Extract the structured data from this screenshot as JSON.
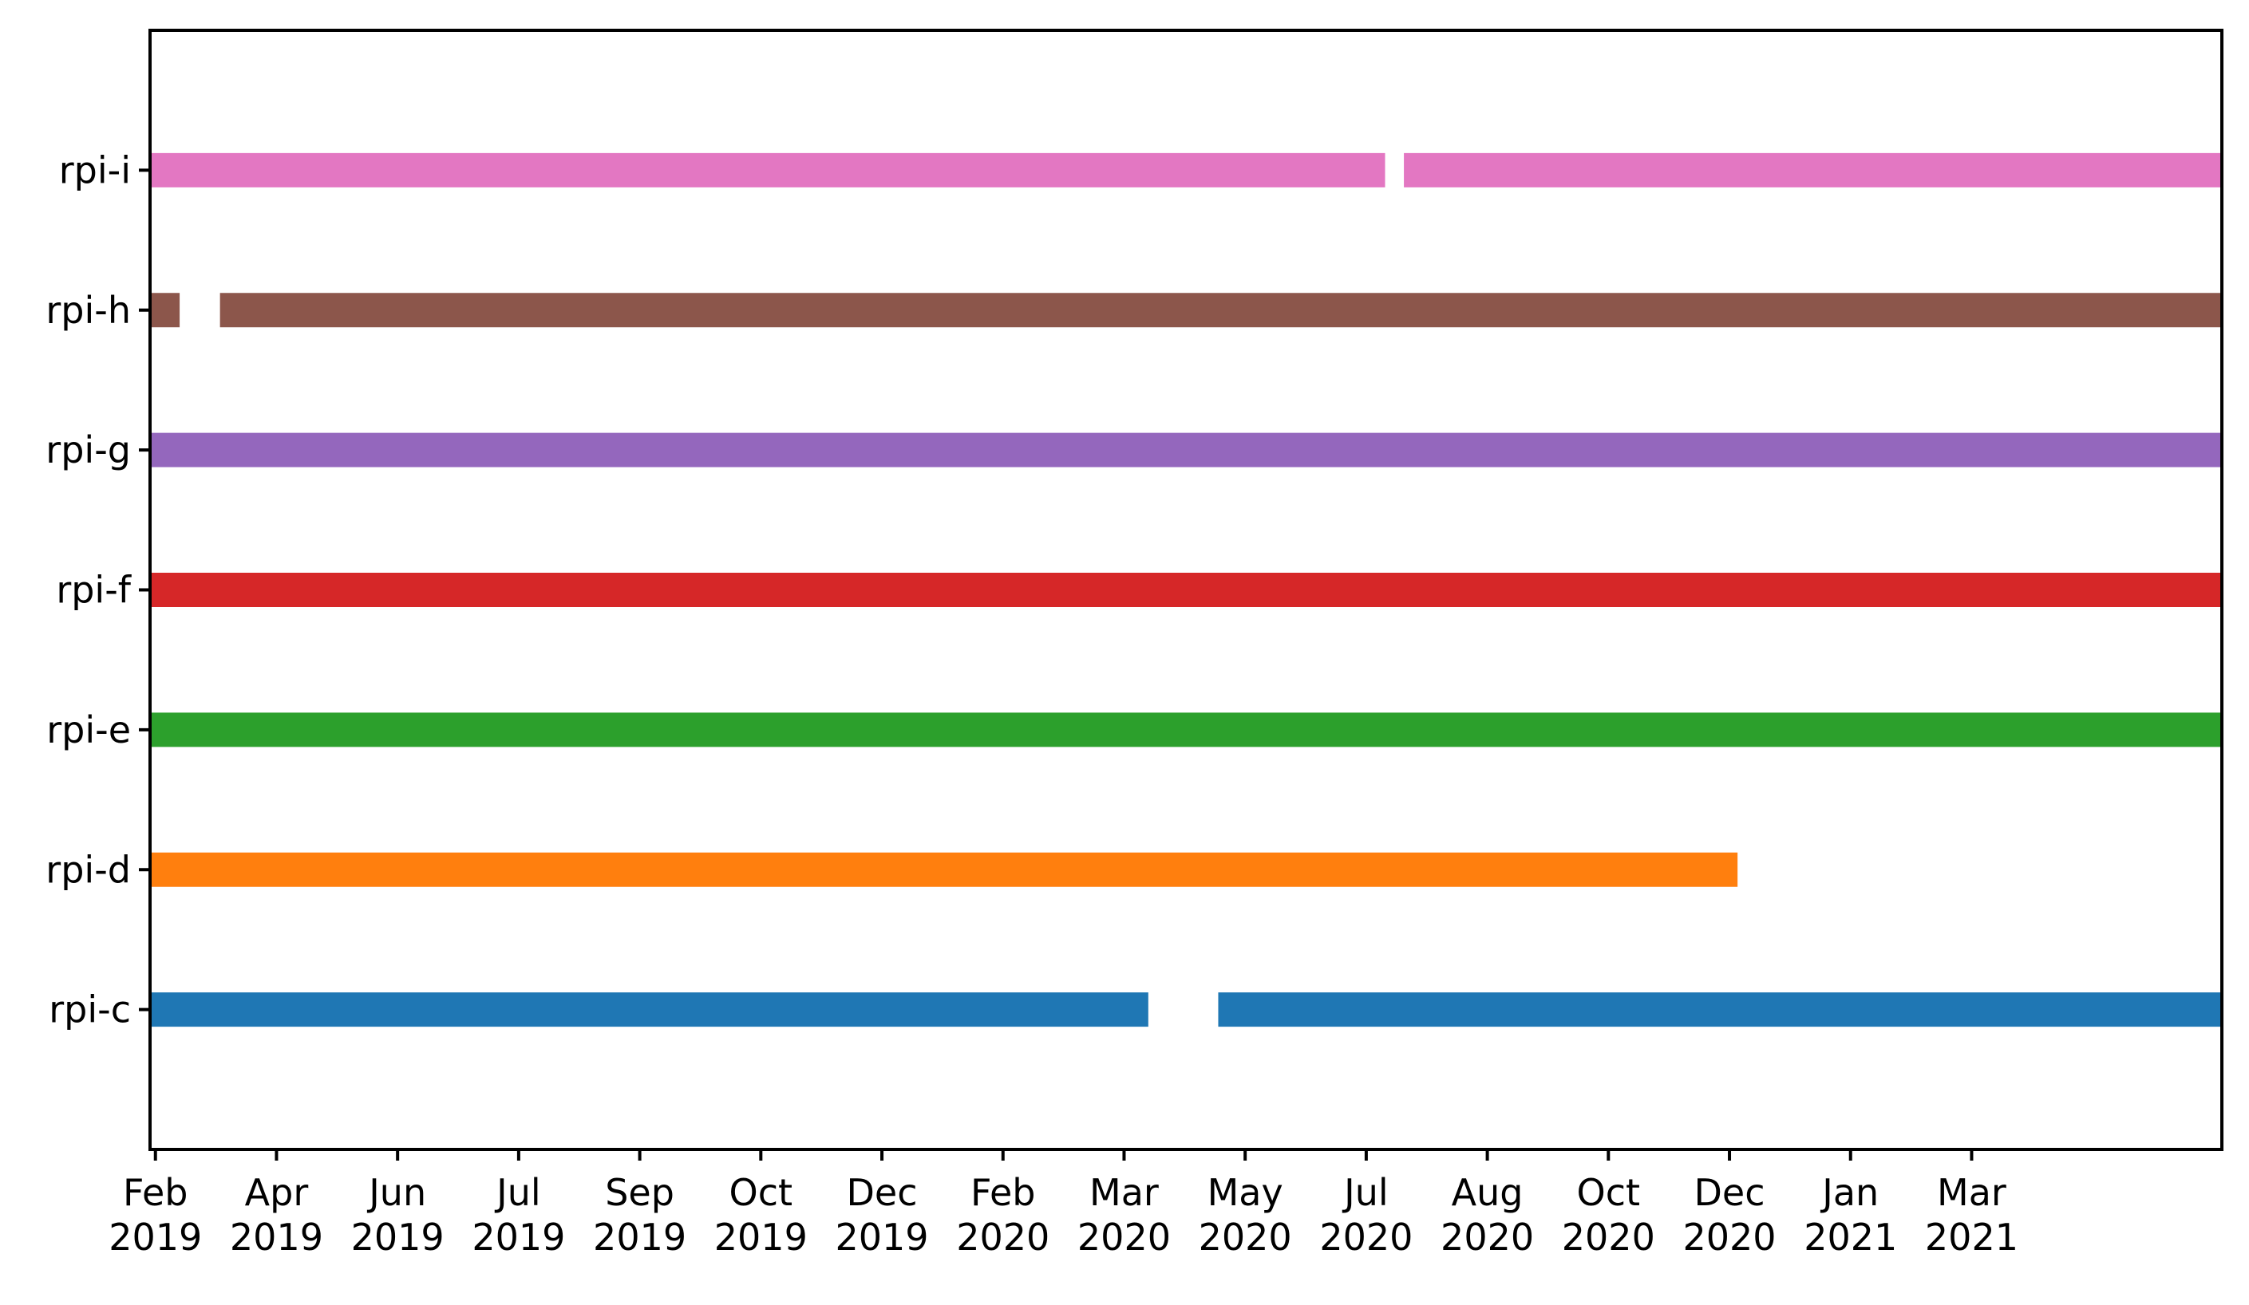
{
  "chart_data": {
    "type": "timeline",
    "title": "",
    "xlabel": "",
    "ylabel": "",
    "x_axis": {
      "type": "date",
      "range": [
        "2019-01-30",
        "2021-03-10"
      ],
      "ticks": [
        {
          "date": "2019-02-01",
          "label": "Feb\n2019"
        },
        {
          "date": "2019-03-18",
          "label": "Apr\n2019"
        },
        {
          "date": "2019-05-02",
          "label": "Jun\n2019"
        },
        {
          "date": "2019-06-16",
          "label": "Jul\n2019"
        },
        {
          "date": "2019-07-31",
          "label": "Sep\n2019"
        },
        {
          "date": "2019-09-14",
          "label": "Oct\n2019"
        },
        {
          "date": "2019-10-29",
          "label": "Dec\n2019"
        },
        {
          "date": "2019-12-13",
          "label": "Feb\n2020"
        },
        {
          "date": "2020-01-27",
          "label": "Mar\n2020"
        },
        {
          "date": "2020-03-12",
          "label": "May\n2020"
        },
        {
          "date": "2020-04-26",
          "label": "Jul\n2020"
        },
        {
          "date": "2020-06-10",
          "label": "Aug\n2020"
        },
        {
          "date": "2020-07-25",
          "label": "Oct\n2020"
        },
        {
          "date": "2020-09-08",
          "label": "Dec\n2020"
        },
        {
          "date": "2020-10-23",
          "label": "Jan\n2021"
        },
        {
          "date": "2020-12-07",
          "label": "Mar\n2021"
        }
      ]
    },
    "grid": false,
    "legend": "none",
    "series": [
      {
        "label": "rpi-c",
        "color": "#1f77b4",
        "segments": [
          [
            "2019-01-30",
            "2020-02-05"
          ],
          [
            "2020-03-02",
            "2021-03-10"
          ]
        ]
      },
      {
        "label": "rpi-d",
        "color": "#ff7f0e",
        "segments": [
          [
            "2019-01-30",
            "2020-09-11"
          ]
        ]
      },
      {
        "label": "rpi-e",
        "color": "#2ca02c",
        "segments": [
          [
            "2019-01-30",
            "2021-03-10"
          ]
        ]
      },
      {
        "label": "rpi-f",
        "color": "#d62728",
        "segments": [
          [
            "2019-01-30",
            "2021-03-10"
          ]
        ]
      },
      {
        "label": "rpi-g",
        "color": "#9467bd",
        "segments": [
          [
            "2019-01-30",
            "2021-03-10"
          ]
        ]
      },
      {
        "label": "rpi-h",
        "color": "#8c564b",
        "segments": [
          [
            "2019-01-30",
            "2019-02-10"
          ],
          [
            "2019-02-25",
            "2021-03-10"
          ]
        ]
      },
      {
        "label": "rpi-i",
        "color": "#e377c2",
        "segments": [
          [
            "2019-01-30",
            "2020-05-03"
          ],
          [
            "2020-05-10",
            "2021-03-10"
          ]
        ]
      }
    ]
  }
}
